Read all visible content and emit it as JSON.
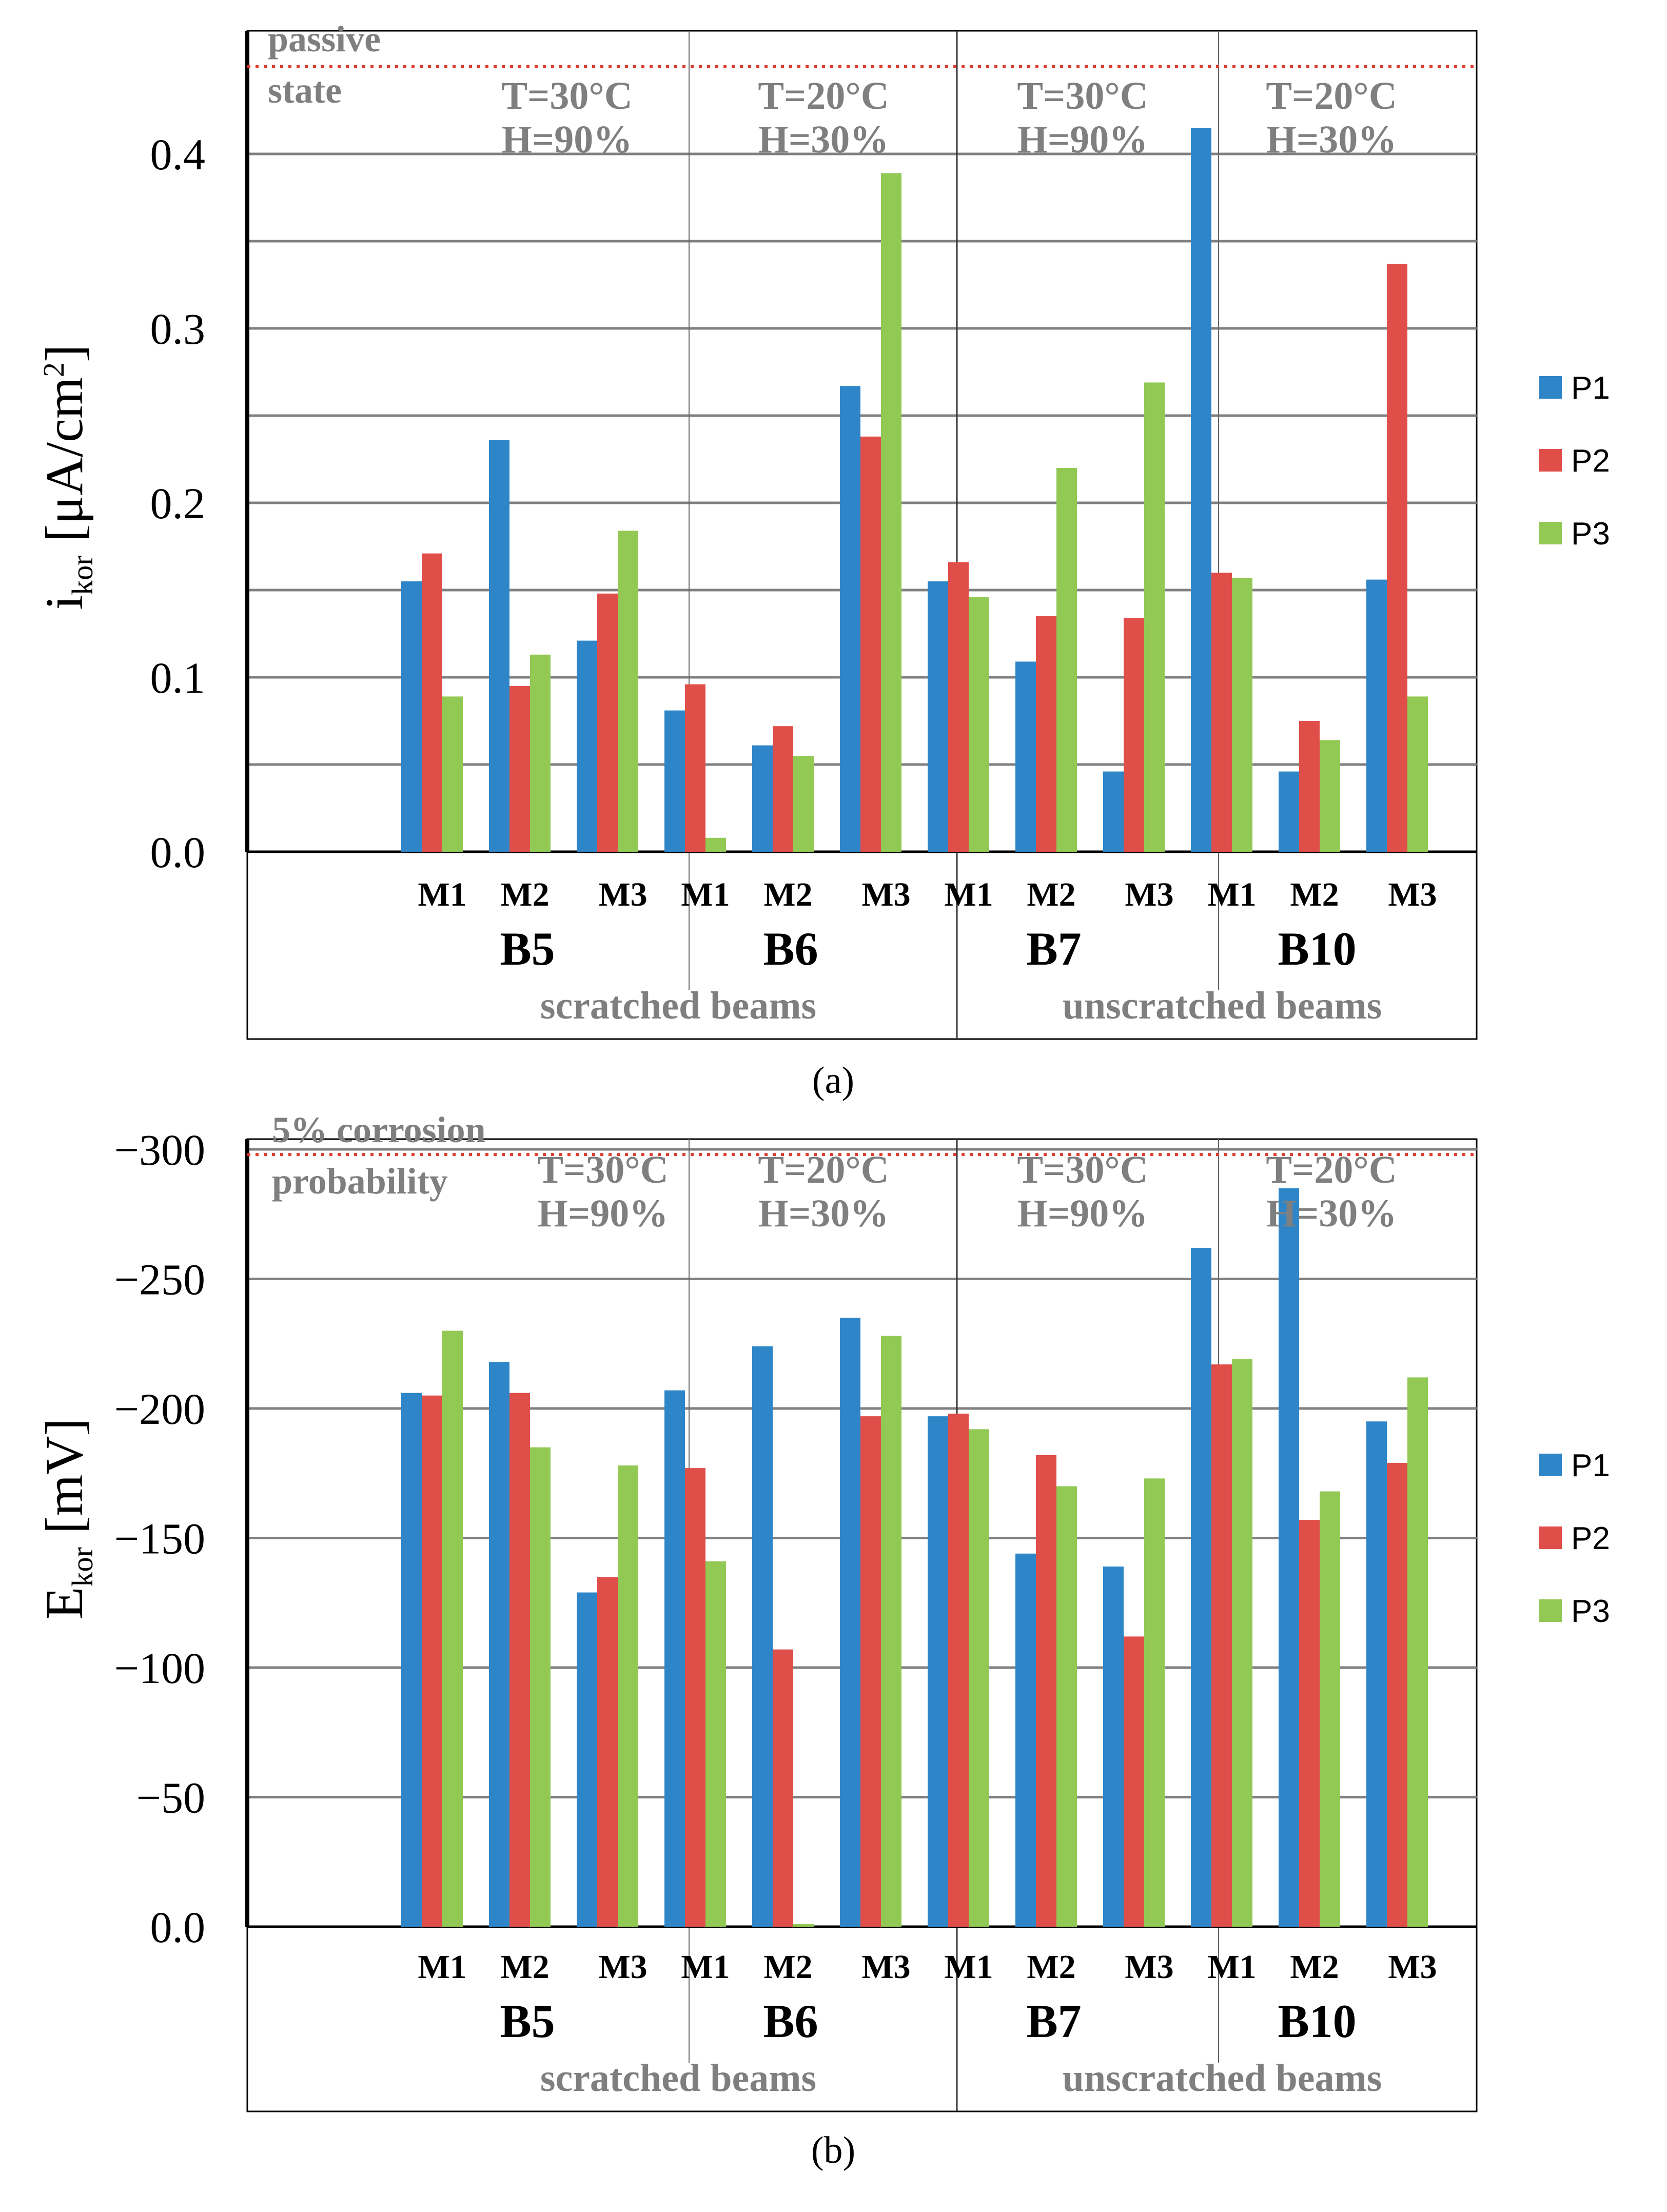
{
  "chart_data": [
    {
      "type": "bar",
      "caption": "(a)",
      "ylabel_main": "i",
      "ylabel_sub": "kor",
      "ylabel_unit_before_sup": " [μA/cm",
      "ylabel_unit_sup": "2",
      "ylabel_unit_after_sup": "]",
      "ylim": [
        0,
        0.45
      ],
      "y_ticks": [
        {
          "value": 0.0,
          "label": "0.0"
        },
        {
          "value": 0.1,
          "label": "0.1"
        },
        {
          "value": 0.2,
          "label": "0.2"
        },
        {
          "value": 0.3,
          "label": "0.3"
        },
        {
          "value": 0.4,
          "label": "0.4"
        }
      ],
      "gridlines": [
        0.05,
        0.1,
        0.15,
        0.2,
        0.25,
        0.3,
        0.35,
        0.4
      ],
      "threshold": {
        "value": 0.45,
        "label_lines": [
          "passive",
          "state"
        ]
      },
      "beams": [
        {
          "name": "B5",
          "condition": [
            "T=30°C",
            "H=90%"
          ],
          "measurements": [
            {
              "label": "M1",
              "values": [
                0.155,
                0.171,
                0.089
              ]
            },
            {
              "label": "M2",
              "values": [
                0.236,
                0.095,
                0.113
              ]
            },
            {
              "label": "M3",
              "values": [
                0.121,
                0.148,
                0.184
              ]
            }
          ]
        },
        {
          "name": "B6",
          "condition": [
            "T=20°C",
            "H=30%"
          ],
          "measurements": [
            {
              "label": "M1",
              "values": [
                0.081,
                0.096,
                0.008
              ]
            },
            {
              "label": "M2",
              "values": [
                0.061,
                0.072,
                0.055
              ]
            },
            {
              "label": "M3",
              "values": [
                0.267,
                0.238,
                0.389
              ]
            }
          ]
        },
        {
          "name": "B7",
          "condition": [
            "T=30°C",
            "H=90%"
          ],
          "measurements": [
            {
              "label": "M1",
              "values": [
                0.155,
                0.166,
                0.146
              ]
            },
            {
              "label": "M2",
              "values": [
                0.109,
                0.135,
                0.22
              ]
            },
            {
              "label": "M3",
              "values": [
                0.046,
                0.134,
                0.269
              ]
            }
          ]
        },
        {
          "name": "B10",
          "condition": [
            "T=20°C",
            "H=30%"
          ],
          "measurements": [
            {
              "label": "M1",
              "values": [
                0.415,
                0.16,
                0.157
              ]
            },
            {
              "label": "M2",
              "values": [
                0.046,
                0.075,
                0.064
              ]
            },
            {
              "label": "M3",
              "values": [
                0.156,
                0.337,
                0.089
              ]
            }
          ]
        }
      ],
      "groups": [
        {
          "label": "scratched beams"
        },
        {
          "label": "unscratched beams"
        }
      ],
      "series": [
        {
          "name": "P1",
          "color": "#2e86c8"
        },
        {
          "name": "P2",
          "color": "#e04e4a"
        },
        {
          "name": "P3",
          "color": "#92c954"
        }
      ]
    },
    {
      "type": "bar",
      "caption": "(b)",
      "ylabel_main": "E",
      "ylabel_sub": "kor",
      "ylabel_unit_before_sup": " [mV]",
      "ylabel_unit_sup": "",
      "ylabel_unit_after_sup": "",
      "ylim": [
        0,
        300
      ],
      "y_ticks": [
        {
          "value": 0,
          "label": "0.0"
        },
        {
          "value": 50,
          "label": "−50"
        },
        {
          "value": 100,
          "label": "−100"
        },
        {
          "value": 150,
          "label": "−150"
        },
        {
          "value": 200,
          "label": "−200"
        },
        {
          "value": 250,
          "label": "−250"
        },
        {
          "value": 300,
          "label": "−300"
        }
      ],
      "gridlines": [
        50,
        100,
        150,
        200,
        250,
        300
      ],
      "threshold": {
        "value": 298,
        "label_lines": [
          "5% corrosion",
          "probability"
        ]
      },
      "beams": [
        {
          "name": "B5",
          "condition": [
            "T=30°C",
            "H=90%"
          ],
          "measurements": [
            {
              "label": "M1",
              "values": [
                206,
                205,
                230
              ]
            },
            {
              "label": "M2",
              "values": [
                218,
                206,
                185
              ]
            },
            {
              "label": "M3",
              "values": [
                129,
                135,
                178
              ]
            }
          ]
        },
        {
          "name": "B6",
          "condition": [
            "T=20°C",
            "H=30%"
          ],
          "measurements": [
            {
              "label": "M1",
              "values": [
                207,
                177,
                141
              ]
            },
            {
              "label": "M2",
              "values": [
                224,
                107,
                1
              ]
            },
            {
              "label": "M3",
              "values": [
                235,
                197,
                228
              ]
            }
          ]
        },
        {
          "name": "B7",
          "condition": [
            "T=30°C",
            "H=90%"
          ],
          "measurements": [
            {
              "label": "M1",
              "values": [
                197,
                198,
                192
              ]
            },
            {
              "label": "M2",
              "values": [
                144,
                182,
                170
              ]
            },
            {
              "label": "M3",
              "values": [
                139,
                112,
                173
              ]
            }
          ]
        },
        {
          "name": "B10",
          "condition": [
            "T=20°C",
            "H=30%"
          ],
          "measurements": [
            {
              "label": "M1",
              "values": [
                262,
                217,
                219
              ]
            },
            {
              "label": "M2",
              "values": [
                285,
                157,
                168
              ]
            },
            {
              "label": "M3",
              "values": [
                195,
                179,
                212
              ]
            }
          ]
        }
      ],
      "groups": [
        {
          "label": "scratched beams"
        },
        {
          "label": "unscratched beams"
        }
      ],
      "series": [
        {
          "name": "P1",
          "color": "#2e86c8"
        },
        {
          "name": "P2",
          "color": "#e04e4a"
        },
        {
          "name": "P3",
          "color": "#92c954"
        }
      ]
    }
  ]
}
